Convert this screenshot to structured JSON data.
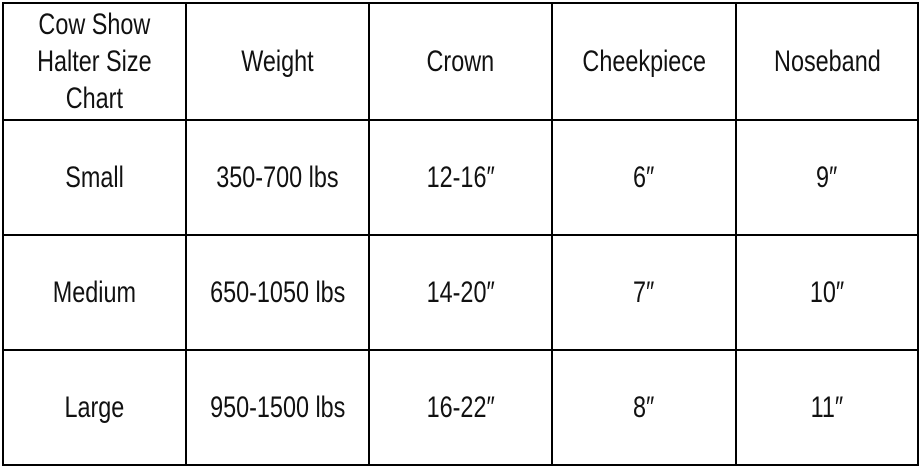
{
  "table": {
    "corner_title": [
      "Cow Show",
      "Halter Size",
      "Chart"
    ],
    "headers": [
      "Weight",
      "Crown",
      "Cheekpiece",
      "Noseband"
    ],
    "rows": [
      {
        "size": "Small",
        "cells": [
          "350-700 lbs",
          "12-16″",
          "6″",
          "9″"
        ]
      },
      {
        "size": "Medium",
        "cells": [
          "650-1050 lbs",
          "14-20″",
          "7″",
          "10″"
        ]
      },
      {
        "size": "Large",
        "cells": [
          "950-1500 lbs",
          "16-22″",
          "8″",
          "11″"
        ]
      }
    ]
  }
}
